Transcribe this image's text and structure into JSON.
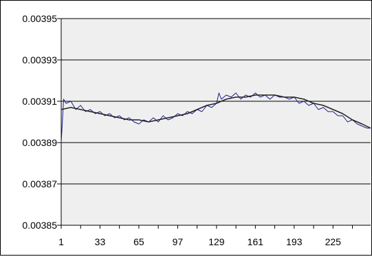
{
  "chart_data": {
    "type": "line",
    "title": "",
    "xlabel": "",
    "ylabel": "",
    "ylim": [
      0.00385,
      0.00395
    ],
    "xlim": [
      1,
      256
    ],
    "y_ticks": [
      "0.00395",
      "0.00393",
      "0.00391",
      "0.00389",
      "0.00387",
      "0.00385"
    ],
    "y_tick_values": [
      0.00395,
      0.00393,
      0.00391,
      0.00389,
      0.00387,
      0.00385
    ],
    "x_ticks": [
      "1",
      "33",
      "65",
      "97",
      "129",
      "161",
      "193",
      "225"
    ],
    "x_tick_values": [
      1,
      33,
      65,
      97,
      129,
      161,
      193,
      225
    ],
    "grid": "horizontal",
    "legend": "none",
    "series": [
      {
        "color": "#1a1a8c",
        "x": [
          1,
          3,
          5,
          9,
          13,
          17,
          21,
          25,
          29,
          33,
          37,
          41,
          45,
          49,
          53,
          57,
          61,
          65,
          69,
          73,
          77,
          81,
          85,
          89,
          93,
          97,
          101,
          105,
          109,
          113,
          117,
          121,
          125,
          129,
          131,
          133,
          137,
          141,
          145,
          149,
          153,
          157,
          161,
          165,
          169,
          173,
          177,
          181,
          185,
          189,
          193,
          197,
          201,
          205,
          209,
          213,
          217,
          221,
          225,
          229,
          233,
          237,
          241,
          245,
          249,
          253,
          256
        ],
        "y": [
          0.00389,
          0.003911,
          0.003909,
          0.00391,
          0.003906,
          0.003908,
          0.003905,
          0.003906,
          0.003904,
          0.003905,
          0.003903,
          0.003904,
          0.003902,
          0.003903,
          0.003901,
          0.003902,
          0.0039,
          0.003899,
          0.003901,
          0.0039,
          0.003902,
          0.0039,
          0.003903,
          0.003901,
          0.003902,
          0.003904,
          0.003903,
          0.003905,
          0.003904,
          0.003906,
          0.003905,
          0.003908,
          0.003907,
          0.003909,
          0.003914,
          0.003911,
          0.003913,
          0.003912,
          0.003914,
          0.003911,
          0.003913,
          0.003912,
          0.003914,
          0.003912,
          0.003913,
          0.003911,
          0.003913,
          0.003912,
          0.003912,
          0.003911,
          0.003912,
          0.003909,
          0.00391,
          0.003908,
          0.003909,
          0.003906,
          0.003907,
          0.003905,
          0.003905,
          0.003903,
          0.003903,
          0.0039,
          0.003901,
          0.003899,
          0.003898,
          0.003897,
          0.003897
        ]
      },
      {
        "color": "#222222",
        "x": [
          1,
          9,
          17,
          25,
          33,
          41,
          49,
          57,
          65,
          73,
          81,
          89,
          97,
          105,
          113,
          121,
          129,
          137,
          145,
          153,
          161,
          169,
          177,
          185,
          193,
          201,
          209,
          217,
          225,
          233,
          241,
          249,
          256
        ],
        "y": [
          0.003906,
          0.003907,
          0.003906,
          0.003905,
          0.003904,
          0.003903,
          0.003902,
          0.003901,
          0.003901,
          0.0039,
          0.003901,
          0.003902,
          0.003903,
          0.003904,
          0.003906,
          0.003908,
          0.003909,
          0.003911,
          0.003912,
          0.003912,
          0.003913,
          0.003913,
          0.003913,
          0.003912,
          0.003912,
          0.003911,
          0.003909,
          0.003908,
          0.003906,
          0.003904,
          0.003901,
          0.003899,
          0.003897
        ]
      }
    ]
  }
}
